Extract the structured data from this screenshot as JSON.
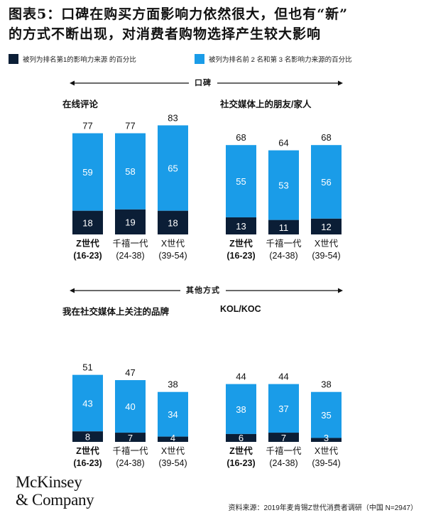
{
  "title_line1": "图表5：口碑在购买方面影响力依然很大，但也有“新”",
  "title_line2": "的方式不断出现，对消费者购物选择产生较大影响",
  "legend": [
    {
      "label": "被列为排名第1的影响力来源 的百分比",
      "color": "#0b1e36"
    },
    {
      "label": "被列为排名前 2 名和第 3 名影响力来源的百分比",
      "color": "#1a9ce8"
    }
  ],
  "sections": [
    {
      "label": "口碑"
    },
    {
      "label": "其他方式"
    }
  ],
  "chart_data": [
    {
      "type": "bar",
      "title": "在线评论",
      "stacked": true,
      "categories": [
        [
          "Z世代",
          "(16-23)"
        ],
        [
          "千禧一代",
          "(24-38)"
        ],
        [
          "X世代",
          "(39-54)"
        ]
      ],
      "series": [
        {
          "values": [
            18,
            19,
            18
          ],
          "color": "#0b1e36"
        },
        {
          "values": [
            59,
            58,
            65
          ],
          "color": "#1a9ce8"
        }
      ],
      "totals": [
        77,
        77,
        83
      ]
    },
    {
      "type": "bar",
      "title": "社交媒体上的朋友/家人",
      "stacked": true,
      "categories": [
        [
          "Z世代",
          "(16-23)"
        ],
        [
          "千禧一代",
          "(24-38)"
        ],
        [
          "X世代",
          "(39-54)"
        ]
      ],
      "series": [
        {
          "values": [
            13,
            11,
            12
          ],
          "color": "#0b1e36"
        },
        {
          "values": [
            55,
            53,
            56
          ],
          "color": "#1a9ce8"
        }
      ],
      "totals": [
        68,
        64,
        68
      ]
    },
    {
      "type": "bar",
      "title": "我在社交媒体上关注的品牌",
      "stacked": true,
      "categories": [
        [
          "Z世代",
          "(16-23)"
        ],
        [
          "千禧一代",
          "(24-38)"
        ],
        [
          "X世代",
          "(39-54)"
        ]
      ],
      "series": [
        {
          "values": [
            8,
            7,
            4
          ],
          "color": "#0b1e36"
        },
        {
          "values": [
            43,
            40,
            34
          ],
          "color": "#1a9ce8"
        }
      ],
      "totals": [
        51,
        47,
        38
      ]
    },
    {
      "type": "bar",
      "title": "KOL/KOC",
      "stacked": true,
      "categories": [
        [
          "Z世代",
          "(16-23)"
        ],
        [
          "千禧一代",
          "(24-38)"
        ],
        [
          "X世代",
          "(39-54)"
        ]
      ],
      "series": [
        {
          "values": [
            6,
            7,
            3
          ],
          "color": "#0b1e36"
        },
        {
          "values": [
            38,
            37,
            35
          ],
          "color": "#1a9ce8"
        }
      ],
      "totals": [
        44,
        44,
        38
      ]
    }
  ],
  "footer": {
    "logo_line1": "McKinsey",
    "logo_line2": "& Company",
    "source": "资料来源：2019年麦肯锡Z世代消费者调研（中国 N=2947）"
  }
}
